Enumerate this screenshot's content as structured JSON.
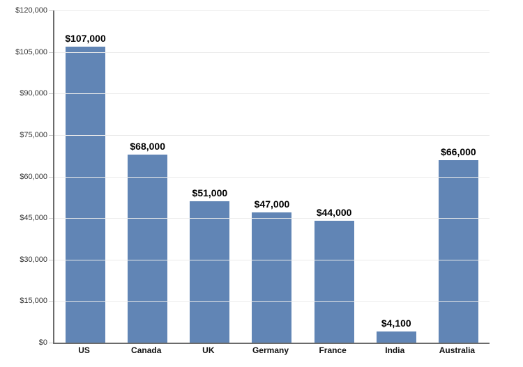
{
  "chart_data": {
    "type": "bar",
    "title": "",
    "xlabel": "",
    "ylabel": "",
    "categories": [
      "US",
      "Canada",
      "UK",
      "Germany",
      "France",
      "India",
      "Australia"
    ],
    "values": [
      107000,
      68000,
      51000,
      47000,
      44000,
      4100,
      66000
    ],
    "value_labels": [
      "$107,000",
      "$68,000",
      "$51,000",
      "$47,000",
      "$44,000",
      "$4,100",
      "$66,000"
    ],
    "ylim": [
      0,
      120000
    ],
    "y_ticks": [
      0,
      15000,
      30000,
      45000,
      60000,
      75000,
      90000,
      105000,
      120000
    ],
    "y_tick_labels": [
      "$0",
      "$15,000",
      "$30,000",
      "$45,000",
      "$60,000",
      "$75,000",
      "$90,000",
      "$105,000",
      "$120,000"
    ],
    "grid": true,
    "legend": "none",
    "colors": {
      "bar_fill": "#6185b5",
      "axis_line": "#6b6b6b",
      "gridline": "#ebebeb",
      "tick_mark": "#c9c9c9",
      "value_label_text": "#000000",
      "tick_label_text": "#333333",
      "category_label_text": "#111111",
      "background": "#ffffff"
    }
  }
}
